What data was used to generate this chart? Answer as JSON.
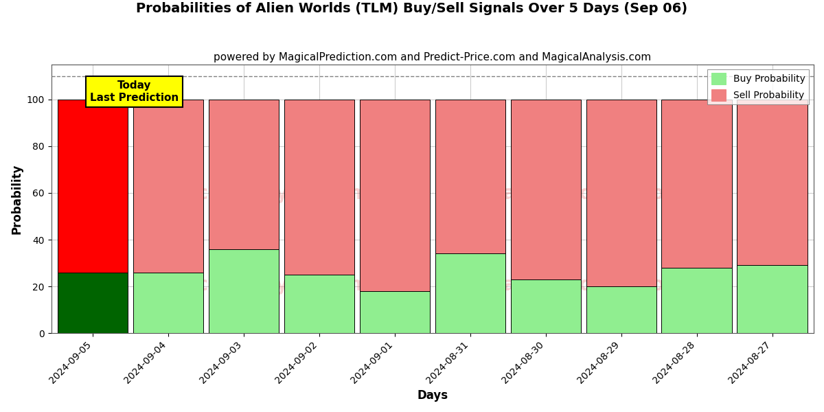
{
  "title": "Probabilities of Alien Worlds (TLM) Buy/Sell Signals Over 5 Days (Sep 06)",
  "subtitle": "powered by MagicalPrediction.com and Predict-Price.com and MagicalAnalysis.com",
  "xlabel": "Days",
  "ylabel": "Probability",
  "dates": [
    "2024-09-05",
    "2024-09-04",
    "2024-09-03",
    "2024-09-02",
    "2024-09-01",
    "2024-08-31",
    "2024-08-30",
    "2024-08-29",
    "2024-08-28",
    "2024-08-27"
  ],
  "buy_values": [
    26,
    26,
    36,
    25,
    18,
    34,
    23,
    20,
    28,
    29
  ],
  "sell_values": [
    74,
    74,
    64,
    75,
    82,
    66,
    77,
    80,
    72,
    71
  ],
  "today_bar_buy_color": "#006400",
  "today_bar_sell_color": "#FF0000",
  "other_bar_buy_color": "#90EE90",
  "other_bar_sell_color": "#F08080",
  "bar_edge_color": "#000000",
  "today_annotation_text": "Today\nLast Prediction",
  "today_annotation_bg": "#FFFF00",
  "legend_buy_color": "#90EE90",
  "legend_sell_color": "#F08080",
  "ylim": [
    0,
    115
  ],
  "dashed_line_y": 110,
  "watermark1": "MagicalAnalysis.com",
  "watermark2": "MagicalPrediction.com",
  "watermark_color": "#F08080",
  "watermark_alpha": 0.35,
  "grid_color": "#CCCCCC",
  "background_color": "#FFFFFF",
  "title_fontsize": 14,
  "subtitle_fontsize": 11,
  "axis_label_fontsize": 12,
  "tick_fontsize": 10,
  "bar_width": 0.93
}
